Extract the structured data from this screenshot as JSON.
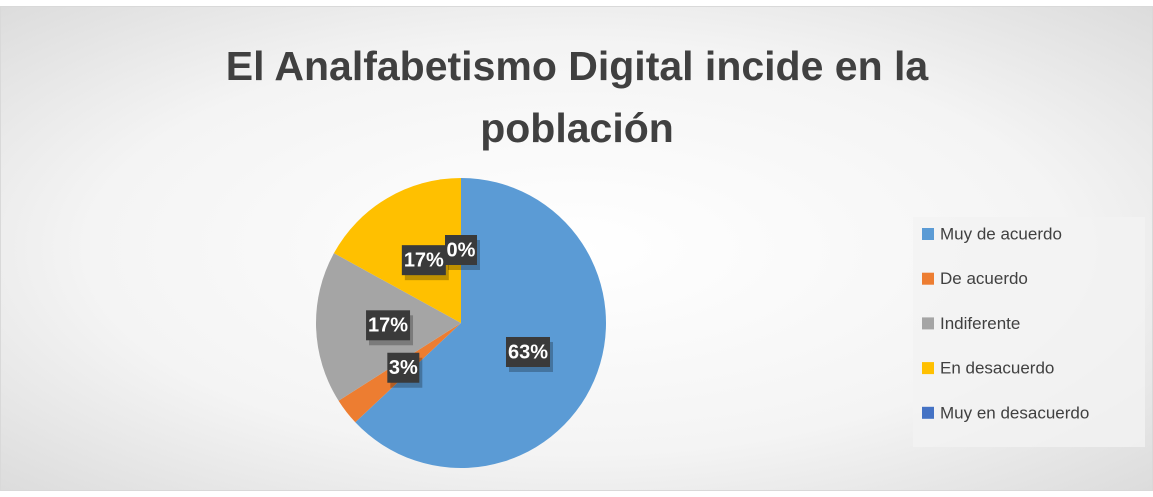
{
  "chart_data": {
    "type": "pie",
    "title": "El Analfabetismo Digital incide en la población",
    "categories": [
      "Muy de acuerdo",
      "De acuerdo",
      "Indiferente",
      "En desacuerdo",
      "Muy en desacuerdo"
    ],
    "values": [
      63,
      3,
      17,
      17,
      0
    ],
    "value_labels": [
      "63%",
      "3%",
      "17%",
      "17%",
      "0%"
    ],
    "colors": [
      "#5b9bd5",
      "#ed7d31",
      "#a5a5a5",
      "#ffc000",
      "#4472c4"
    ],
    "legend": "right"
  }
}
